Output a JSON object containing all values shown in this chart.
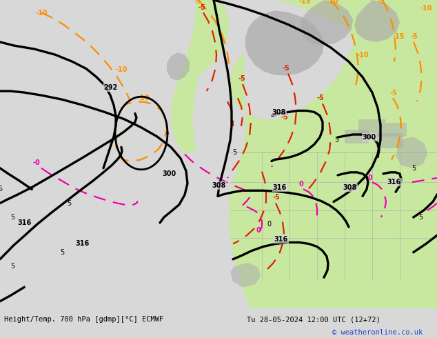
{
  "title_left": "Height/Temp. 700 hPa [gdmp][°C] ECMWF",
  "title_right": "Tu 28-05-2024 12:00 UTC (12+72)",
  "credit": "© weatheronline.co.uk",
  "bg_color": "#d8d8d8",
  "green_fill": "#c8e8a0",
  "gray_fill": "#aaaaaa",
  "white_bar": "#ffffff",
  "black_lw": 2.4,
  "orange_color": "#ff8c00",
  "red_color": "#dd2200",
  "magenta_color": "#ee00aa",
  "dashed_lw": 1.6
}
